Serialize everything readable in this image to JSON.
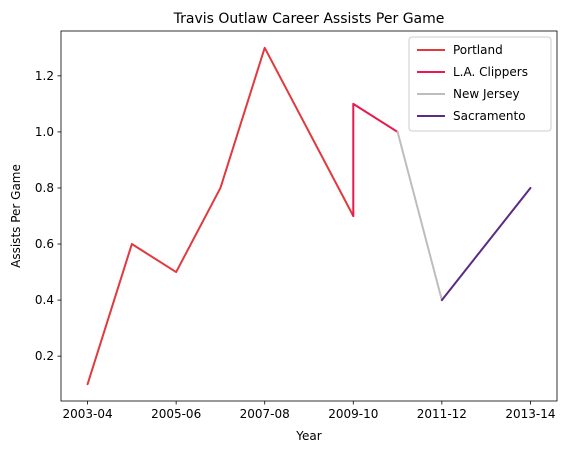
{
  "chart_data": {
    "type": "line",
    "title": "Travis Outlaw Career Assists Per Game",
    "xlabel": "Year",
    "ylabel": "Assists Per Game",
    "x_tick_labels": [
      "2003-04",
      "2005-06",
      "2007-08",
      "2009-10",
      "2011-12",
      "2013-14"
    ],
    "x_tick_values": [
      2003,
      2005,
      2007,
      2009,
      2011,
      2013
    ],
    "y_ticks": [
      0.2,
      0.4,
      0.6,
      0.8,
      1.0,
      1.2
    ],
    "xlim": [
      2002.4,
      2013.6
    ],
    "ylim": [
      0.04,
      1.36
    ],
    "grid": false,
    "legend_position": "top-right",
    "series": [
      {
        "name": "Portland",
        "color": "#e03a3e",
        "points": [
          {
            "x": 2003,
            "y": 0.1
          },
          {
            "x": 2004,
            "y": 0.6
          },
          {
            "x": 2005,
            "y": 0.5
          },
          {
            "x": 2006,
            "y": 0.8
          },
          {
            "x": 2007,
            "y": 1.3
          },
          {
            "x": 2009,
            "y": 0.7
          }
        ]
      },
      {
        "name": "L.A. Clippers",
        "color": "#e8194e",
        "points": [
          {
            "x": 2009,
            "y": 0.7
          },
          {
            "x": 2009,
            "y": 1.1
          },
          {
            "x": 2010,
            "y": 1.0
          }
        ]
      },
      {
        "name": "New Jersey",
        "color": "#bdbdbd",
        "points": [
          {
            "x": 2010,
            "y": 1.0
          },
          {
            "x": 2011,
            "y": 0.4
          }
        ]
      },
      {
        "name": "Sacramento",
        "color": "#5b2b82",
        "points": [
          {
            "x": 2011,
            "y": 0.4
          },
          {
            "x": 2013,
            "y": 0.8
          }
        ]
      }
    ]
  }
}
